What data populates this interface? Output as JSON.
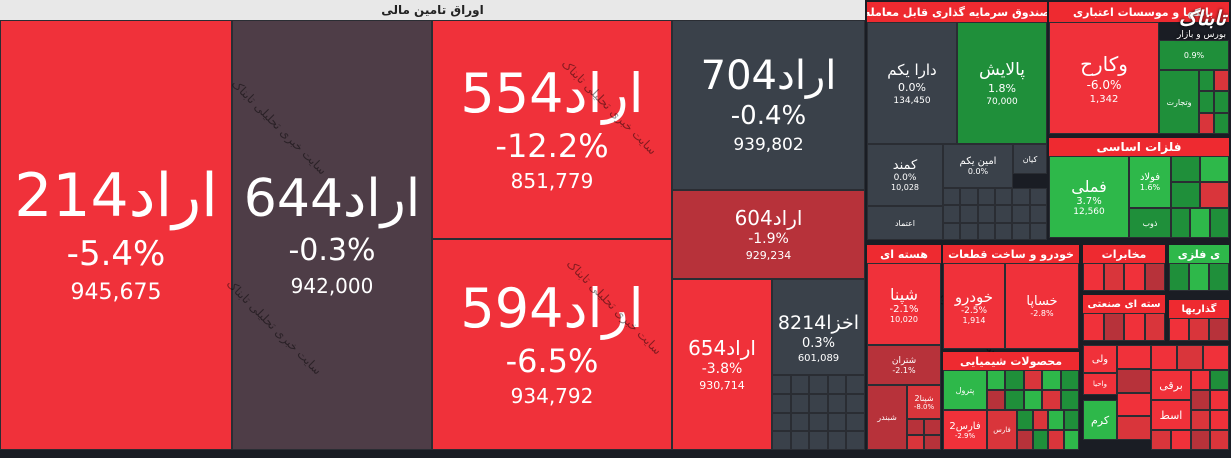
{
  "sectors": {
    "main": "اوراق تامین مالی",
    "fund": "صندوق سرمایه گذاری قابل معامله",
    "bank": "بانکها و موسسات اعتباری",
    "metal": "فلزات اساسی",
    "nuclear": "هسته ای",
    "auto": "خودرو و ساخت قطعات",
    "telecom": "مخابرات",
    "chem": "محصولات شیمیایی",
    "mine": "ی فلزی",
    "multi": "سته ای صنعتی",
    "invest": "گذاریها"
  },
  "tiles": {
    "a214": {
      "name": "اراد214",
      "pct": "-5.4%",
      "val": "945,675"
    },
    "a644": {
      "name": "اراد644",
      "pct": "-0.3%",
      "val": "942,000"
    },
    "a554": {
      "name": "اراد554",
      "pct": "-12.2%",
      "val": "851,779"
    },
    "a594": {
      "name": "اراد594",
      "pct": "-6.5%",
      "val": "934,792"
    },
    "a704": {
      "name": "اراد704",
      "pct": "-0.4%",
      "val": "939,802"
    },
    "a604": {
      "name": "اراد604",
      "pct": "-1.9%",
      "val": "929,234"
    },
    "a654": {
      "name": "اراد654",
      "pct": "-3.8%",
      "val": "930,714"
    },
    "akh": {
      "name": "اخزا8214",
      "pct": "0.3%",
      "val": "601,089"
    },
    "dara": {
      "name": "دارا یکم",
      "pct": "0.0%",
      "val": "134,450"
    },
    "pal": {
      "name": "پالایش",
      "pct": "1.8%",
      "val": "70,000"
    },
    "kmnd": {
      "name": "کمند",
      "pct": "0.0%",
      "val": "10,028"
    },
    "amin": {
      "name": "امین یکم",
      "pct": "0.0%"
    },
    "kian": {
      "name": "کیان"
    },
    "etem": {
      "name": "اعتماد"
    },
    "vkar": {
      "name": "وکارح",
      "pct": "-6.0%",
      "val": "1,342"
    },
    "vtej": {
      "name": "وتجارت"
    },
    "bank2": {
      "pct": "0.9%"
    },
    "fmli": {
      "name": "فملی",
      "pct": "3.7%",
      "val": "12,560"
    },
    "fold": {
      "name": "فولاد",
      "pct": "1.6%"
    },
    "zob": {
      "name": "ذوب"
    },
    "shpna": {
      "name": "شپنا",
      "pct": "-2.1%",
      "val": "10,020"
    },
    "shtr": {
      "name": "شتران",
      "pct": "-2.1%"
    },
    "shpna2": {
      "name": "شپنا2",
      "pct": "-8.0%"
    },
    "shbn": {
      "name": "شبندر"
    },
    "khod": {
      "name": "خودرو",
      "pct": "-2.5%",
      "val": "1,914"
    },
    "khsp": {
      "name": "خساپا",
      "pct": "-2.8%"
    },
    "fars2": {
      "name": "فارس2",
      "pct": "-2.9%"
    },
    "ptrl": {
      "name": "پترول"
    },
    "fars": {
      "name": "فارس"
    },
    "vlu": {
      "name": "ولی"
    },
    "vahy": {
      "name": "واحیا"
    },
    "brq": {
      "name": "برقی"
    },
    "krm": {
      "name": "کرم"
    },
    "slt": {
      "name": "اسط"
    }
  },
  "watermark": "سایت خبری تحلیلی تابناک",
  "logo": {
    "main": "تابناک",
    "sub": "بورس و بازار"
  }
}
